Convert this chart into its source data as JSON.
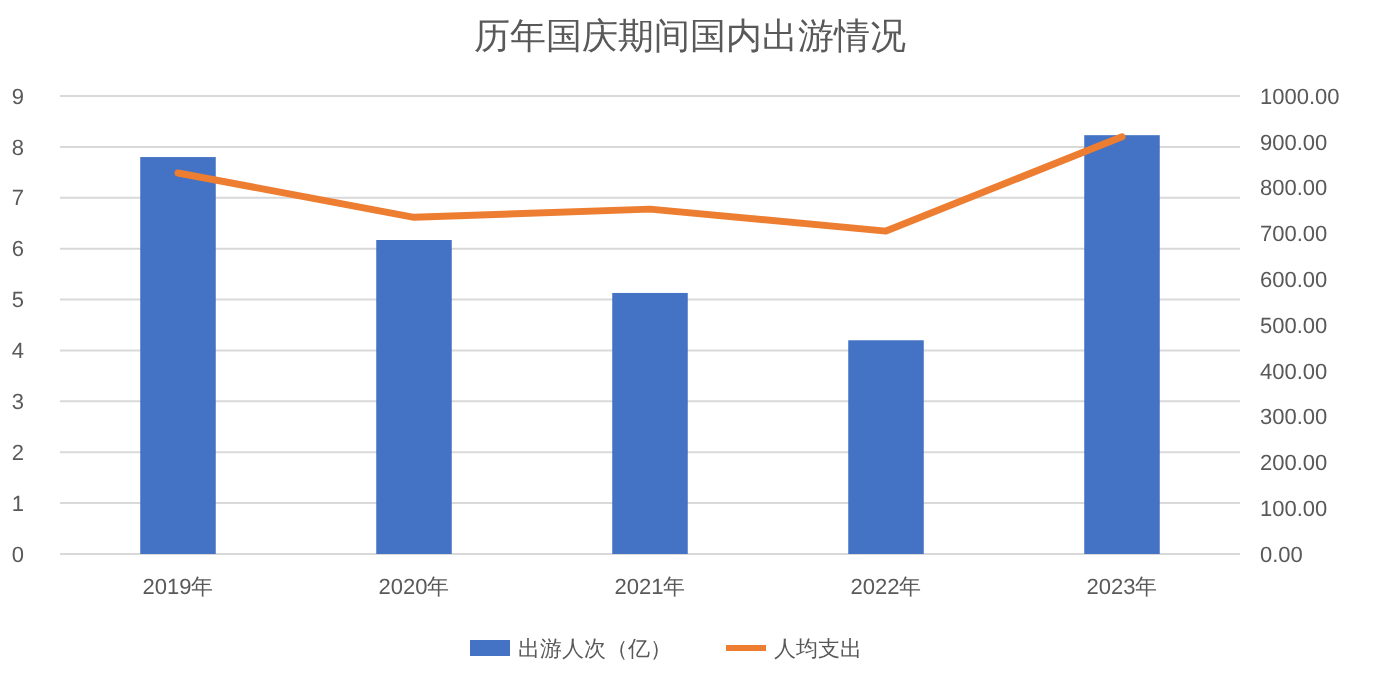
{
  "chart_data": {
    "type": "bar",
    "title": "历年国庆期间国内出游情况",
    "categories": [
      "2019年",
      "2020年",
      "2021年",
      "2022年",
      "2023年"
    ],
    "series": [
      {
        "name": "出游人次（亿）",
        "color": "#4472c4",
        "values": [
          7.8,
          6.17,
          5.13,
          4.2,
          8.23
        ]
      },
      {
        "name": "人均支出",
        "type": "line",
        "axis": "y2",
        "color": "#ed7d31",
        "values": [
          832,
          735,
          753,
          705,
          911
        ]
      }
    ],
    "ylim": [
      0,
      9
    ],
    "yticks": [
      0,
      1,
      2,
      3,
      4,
      5,
      6,
      7,
      8,
      9
    ],
    "y2lim": [
      0,
      1000
    ],
    "y2ticks": [
      {
        "value": 0,
        "label": "0.00"
      },
      {
        "value": 100,
        "label": "100.00"
      },
      {
        "value": 200,
        "label": "200.00"
      },
      {
        "value": 300,
        "label": "300.00"
      },
      {
        "value": 400,
        "label": "400.00"
      },
      {
        "value": 500,
        "label": "500.00"
      },
      {
        "value": 600,
        "label": "600.00"
      },
      {
        "value": 700,
        "label": "700.00"
      },
      {
        "value": 800,
        "label": "800.00"
      },
      {
        "value": 900,
        "label": "900.00"
      },
      {
        "value": 1000,
        "label": "1000.00"
      }
    ],
    "grid": "y",
    "legend": "bottom",
    "marker": "none",
    "line_style": "solid"
  }
}
